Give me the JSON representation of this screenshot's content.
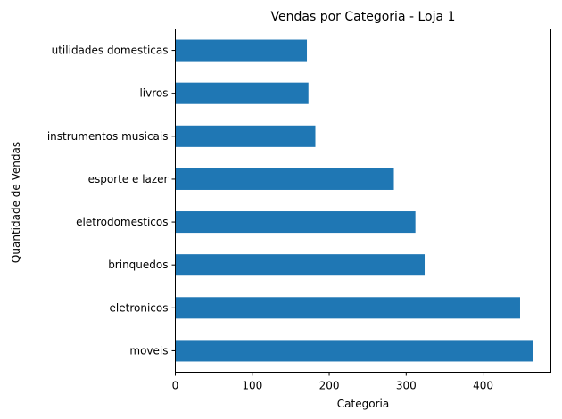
{
  "chart_data": {
    "type": "bar",
    "orientation": "horizontal",
    "title": "Vendas por Categoria - Loja 1",
    "xlabel": "Categoria",
    "ylabel": "Quantidade de Vendas",
    "categories": [
      "moveis",
      "eletronicos",
      "brinquedos",
      "eletrodomesticos",
      "esporte e lazer",
      "instrumentos musicais",
      "livros",
      "utilidades domesticas"
    ],
    "values": [
      465,
      448,
      324,
      312,
      284,
      182,
      173,
      171
    ],
    "xlim": [
      0,
      488
    ],
    "xticks": [
      0,
      100,
      200,
      300,
      400
    ],
    "grid": false,
    "colors": {
      "bar": "#1f77b4",
      "axis": "#000000"
    }
  }
}
